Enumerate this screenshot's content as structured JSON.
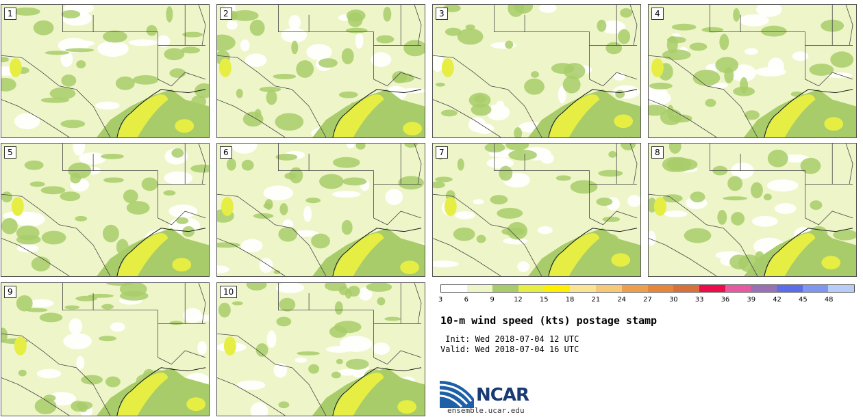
{
  "panels": [
    {
      "label": "1"
    },
    {
      "label": "2"
    },
    {
      "label": "3"
    },
    {
      "label": "4"
    },
    {
      "label": "5"
    },
    {
      "label": "6"
    },
    {
      "label": "7"
    },
    {
      "label": "8"
    },
    {
      "label": "9"
    },
    {
      "label": "10"
    }
  ],
  "colorbar": {
    "colors": [
      "#ffffff",
      "#eef5c8",
      "#a8cc6a",
      "#e6ee44",
      "#ffef00",
      "#fae493",
      "#f5c977",
      "#ee9f4e",
      "#e6863a",
      "#d8703c",
      "#ec0c4a",
      "#e85aa0",
      "#9a70b4",
      "#5a6ee8",
      "#7e96f0",
      "#b8ccf8"
    ],
    "ticks": [
      "3",
      "6",
      "9",
      "12",
      "15",
      "18",
      "21",
      "24",
      "27",
      "30",
      "33",
      "36",
      "39",
      "42",
      "45",
      "48"
    ]
  },
  "title": "10-m wind speed (kts) postage stamp",
  "init": " Init: Wed 2018-07-04 12 UTC",
  "valid": "Valid: Wed 2018-07-04 16 UTC",
  "logo": {
    "text": "NCAR",
    "url": "ensemble.ucar.edu"
  }
}
